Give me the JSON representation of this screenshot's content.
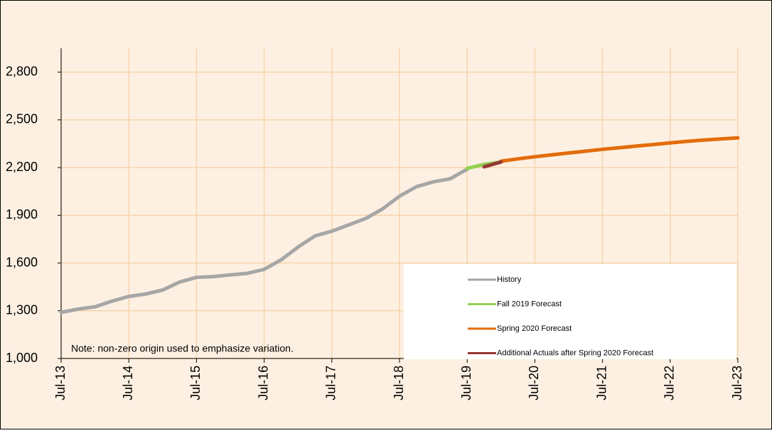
{
  "chart_data": {
    "type": "line",
    "annotation": "Note: non-zero origin used to emphasize variation.",
    "categories": [
      "Jul-13",
      null,
      null,
      null,
      "Jul-14",
      null,
      null,
      null,
      "Jul-15",
      null,
      null,
      null,
      "Jul-16",
      null,
      null,
      null,
      "Jul-17",
      null,
      null,
      null,
      "Jul-18",
      null,
      null,
      null,
      "Jul-19",
      null,
      null,
      null,
      "Jul-20",
      null,
      null,
      null,
      "Jul-21",
      null,
      null,
      null,
      "Jul-22",
      null,
      null,
      null,
      "Jul-23"
    ],
    "series": [
      {
        "name": "History",
        "color": "#a6a6a6",
        "values": [
          1290,
          1310,
          1325,
          1360,
          1390,
          1405,
          1430,
          1480,
          1510,
          1515,
          1525,
          1535,
          1560,
          1620,
          1700,
          1770,
          1800,
          1840,
          1880,
          1940,
          2020,
          2080,
          2110,
          2130,
          2190,
          null,
          null,
          null,
          null,
          null,
          null,
          null,
          null,
          null,
          null,
          null,
          null,
          null,
          null,
          null,
          null
        ]
      },
      {
        "name": "Fall 2019 Forecast",
        "color": "#92d050",
        "values": [
          null,
          null,
          null,
          null,
          null,
          null,
          null,
          null,
          null,
          null,
          null,
          null,
          null,
          null,
          null,
          null,
          null,
          null,
          null,
          null,
          null,
          null,
          null,
          null,
          2195,
          2220,
          2235,
          null,
          null,
          null,
          null,
          null,
          null,
          null,
          null,
          null,
          null,
          null,
          null,
          null,
          null
        ]
      },
      {
        "name": "Spring 2020 Forecast",
        "color": "#e36c0a",
        "values": [
          null,
          null,
          null,
          null,
          null,
          null,
          null,
          null,
          null,
          null,
          null,
          null,
          null,
          null,
          null,
          null,
          null,
          null,
          null,
          null,
          null,
          null,
          null,
          null,
          null,
          null,
          2240,
          2255,
          2268,
          2280,
          2292,
          2303,
          2315,
          2325,
          2335,
          2345,
          2355,
          2365,
          2373,
          2380,
          2387
        ]
      },
      {
        "name": "Additional Actuals after Spring 2020 Forecast",
        "color": "#953735",
        "values": [
          null,
          null,
          null,
          null,
          null,
          null,
          null,
          null,
          null,
          null,
          null,
          null,
          null,
          null,
          null,
          null,
          null,
          null,
          null,
          null,
          null,
          null,
          null,
          null,
          null,
          2205,
          2235,
          null,
          null,
          null,
          null,
          null,
          null,
          null,
          null,
          null,
          null,
          null,
          null,
          null,
          null
        ]
      }
    ],
    "ylim": [
      1000,
      2950
    ],
    "yticks": [
      {
        "value": 1000,
        "label": "1,000"
      },
      {
        "value": 1300,
        "label": "1,300"
      },
      {
        "value": 1600,
        "label": "1,600"
      },
      {
        "value": 1900,
        "label": "1,900"
      },
      {
        "value": 2200,
        "label": "2,200"
      },
      {
        "value": 2500,
        "label": "2,500"
      },
      {
        "value": 2800,
        "label": "2,800"
      }
    ],
    "grid": true,
    "legend": "lower right",
    "background": "#fdf0e2",
    "grid_color": "#f5d5ad"
  }
}
